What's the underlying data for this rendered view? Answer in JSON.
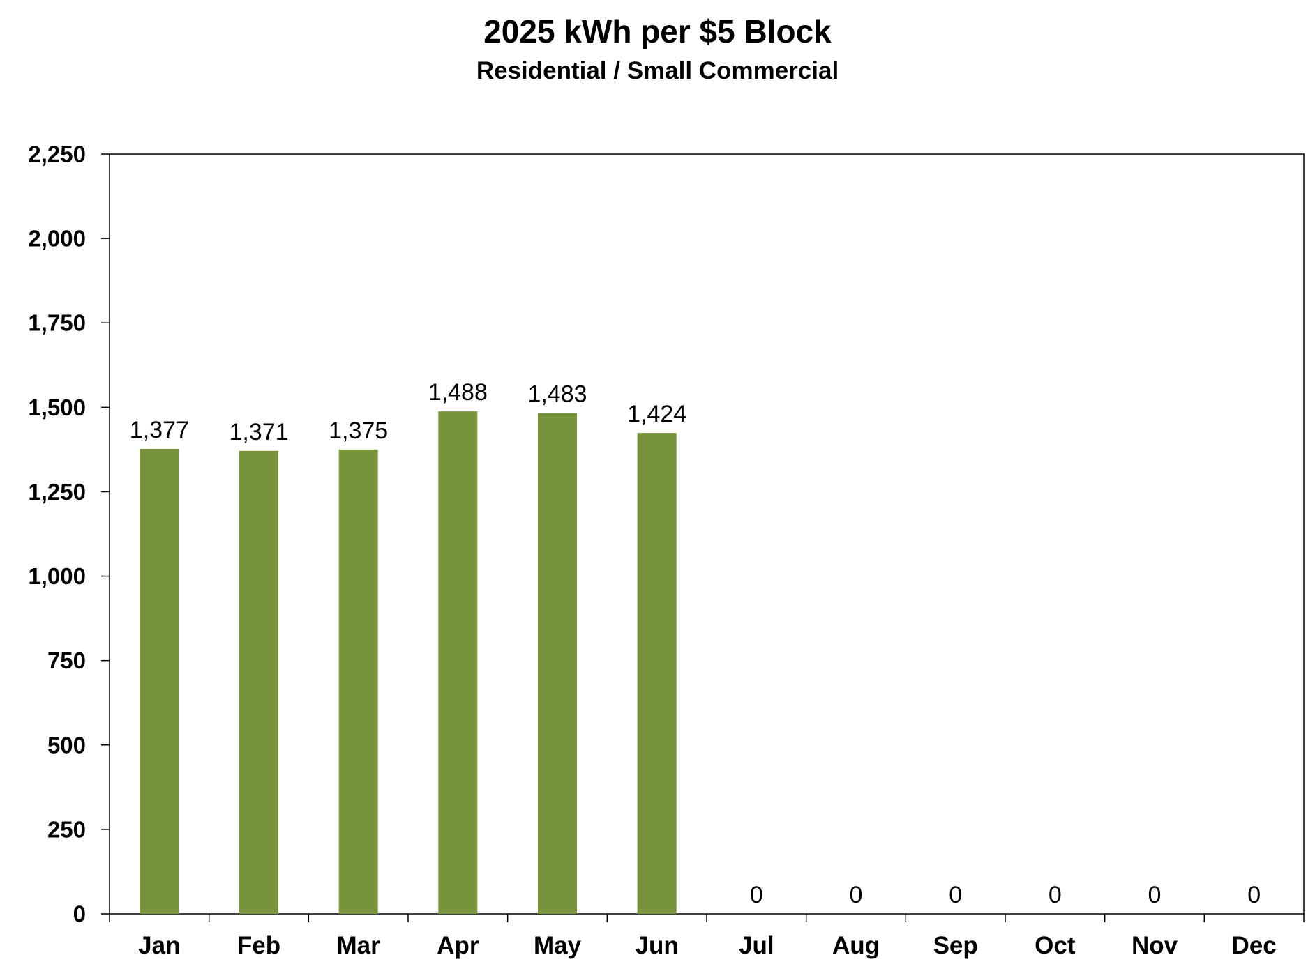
{
  "chart_data": {
    "type": "bar",
    "title": "2025 kWh per $5 Block",
    "subtitle": "Residential / Small Commercial",
    "xlabel": "",
    "ylabel": "",
    "categories": [
      "Jan",
      "Feb",
      "Mar",
      "Apr",
      "May",
      "Jun",
      "Jul",
      "Aug",
      "Sep",
      "Oct",
      "Nov",
      "Dec"
    ],
    "values": [
      1377,
      1371,
      1375,
      1488,
      1483,
      1424,
      0,
      0,
      0,
      0,
      0,
      0
    ],
    "data_labels": [
      "1,377",
      "1,371",
      "1,375",
      "1,488",
      "1,483",
      "1,424",
      "0",
      "0",
      "0",
      "0",
      "0",
      "0"
    ],
    "ylim": [
      0,
      2250
    ],
    "yticks": [
      0,
      250,
      500,
      750,
      1000,
      1250,
      1500,
      1750,
      2000,
      2250
    ],
    "ytick_labels": [
      "0",
      "250",
      "500",
      "750",
      "1,000",
      "1,250",
      "1,500",
      "1,750",
      "2,000",
      "2,250"
    ],
    "grid": false,
    "legend": "none",
    "bar_color": "#77933C"
  }
}
